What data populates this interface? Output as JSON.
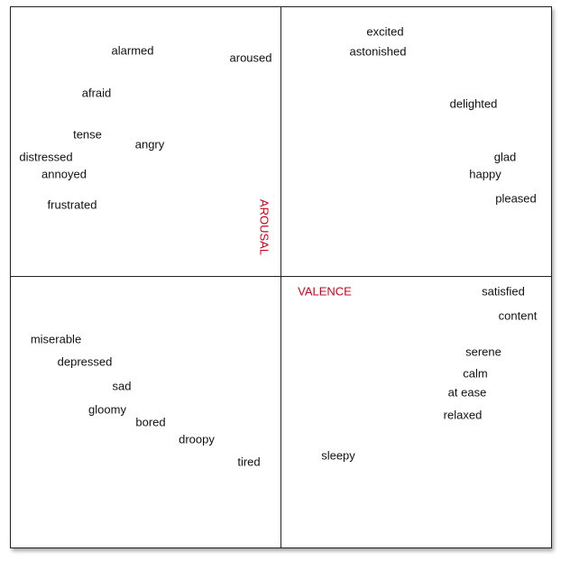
{
  "axes": {
    "vertical_label": "AROUSAL",
    "horizontal_label": "VALENCE",
    "label_color": "#d0021b"
  },
  "words": [
    {
      "id": "excited",
      "text": "excited"
    },
    {
      "id": "astonished",
      "text": "astonished"
    },
    {
      "id": "alarmed",
      "text": "alarmed"
    },
    {
      "id": "aroused",
      "text": "aroused"
    },
    {
      "id": "afraid",
      "text": "afraid"
    },
    {
      "id": "delighted",
      "text": "delighted"
    },
    {
      "id": "tense",
      "text": "tense"
    },
    {
      "id": "angry",
      "text": "angry"
    },
    {
      "id": "distressed",
      "text": "distressed"
    },
    {
      "id": "glad",
      "text": "glad"
    },
    {
      "id": "annoyed",
      "text": "annoyed"
    },
    {
      "id": "happy",
      "text": "happy"
    },
    {
      "id": "pleased",
      "text": "pleased"
    },
    {
      "id": "frustrated",
      "text": "frustrated"
    },
    {
      "id": "satisfied",
      "text": "satisfied"
    },
    {
      "id": "content",
      "text": "content"
    },
    {
      "id": "miserable",
      "text": "miserable"
    },
    {
      "id": "serene",
      "text": "serene"
    },
    {
      "id": "depressed",
      "text": "depressed"
    },
    {
      "id": "calm",
      "text": "calm"
    },
    {
      "id": "sad",
      "text": "sad"
    },
    {
      "id": "at-ease",
      "text": "at ease"
    },
    {
      "id": "gloomy",
      "text": "gloomy"
    },
    {
      "id": "relaxed",
      "text": "relaxed"
    },
    {
      "id": "bored",
      "text": "bored"
    },
    {
      "id": "droopy",
      "text": "droopy"
    },
    {
      "id": "sleepy",
      "text": "sleepy"
    },
    {
      "id": "tired",
      "text": "tired"
    }
  ]
}
